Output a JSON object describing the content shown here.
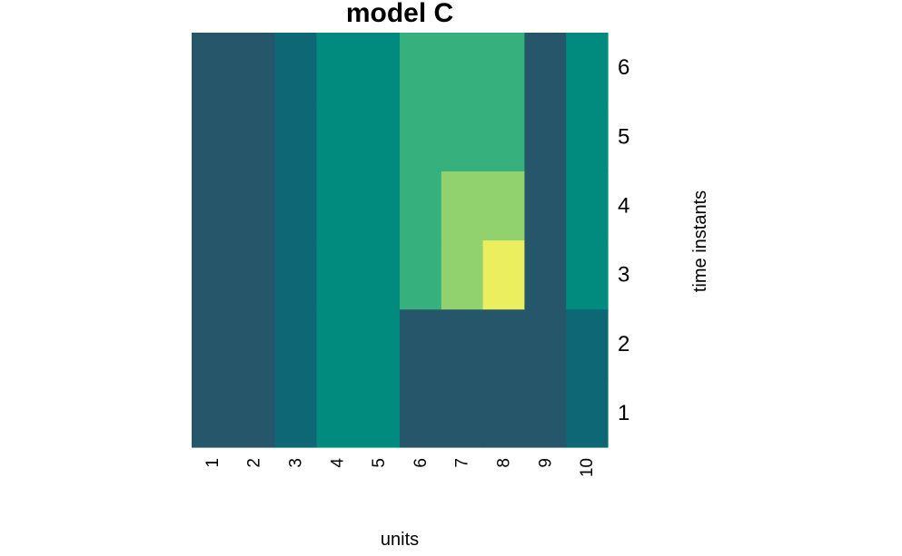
{
  "chart_data": {
    "type": "heatmap",
    "title": "model C",
    "xlabel": "units",
    "ylabel": "time instants",
    "x": [
      "1",
      "2",
      "3",
      "4",
      "5",
      "6",
      "7",
      "8",
      "9",
      "10"
    ],
    "y": [
      "1",
      "2",
      "3",
      "4",
      "5",
      "6"
    ],
    "values": [
      [
        1,
        1,
        2,
        3,
        3,
        1,
        1,
        1,
        1,
        2
      ],
      [
        1,
        1,
        2,
        3,
        3,
        1,
        1,
        1,
        1,
        2
      ],
      [
        1,
        1,
        2,
        3,
        3,
        4,
        5,
        6,
        1,
        3
      ],
      [
        1,
        1,
        2,
        3,
        3,
        4,
        5,
        5,
        1,
        3
      ],
      [
        1,
        1,
        2,
        3,
        3,
        4,
        4,
        4,
        1,
        3
      ],
      [
        1,
        1,
        2,
        3,
        3,
        4,
        4,
        4,
        1,
        3
      ]
    ],
    "colors": {
      "1": "#26566a",
      "2": "#0e6775",
      "3": "#008b7e",
      "4": "#36b07c",
      "5": "#91d16e",
      "6": "#ebee5f"
    },
    "y_axis_position": "right",
    "grid": false,
    "legend": "none"
  }
}
